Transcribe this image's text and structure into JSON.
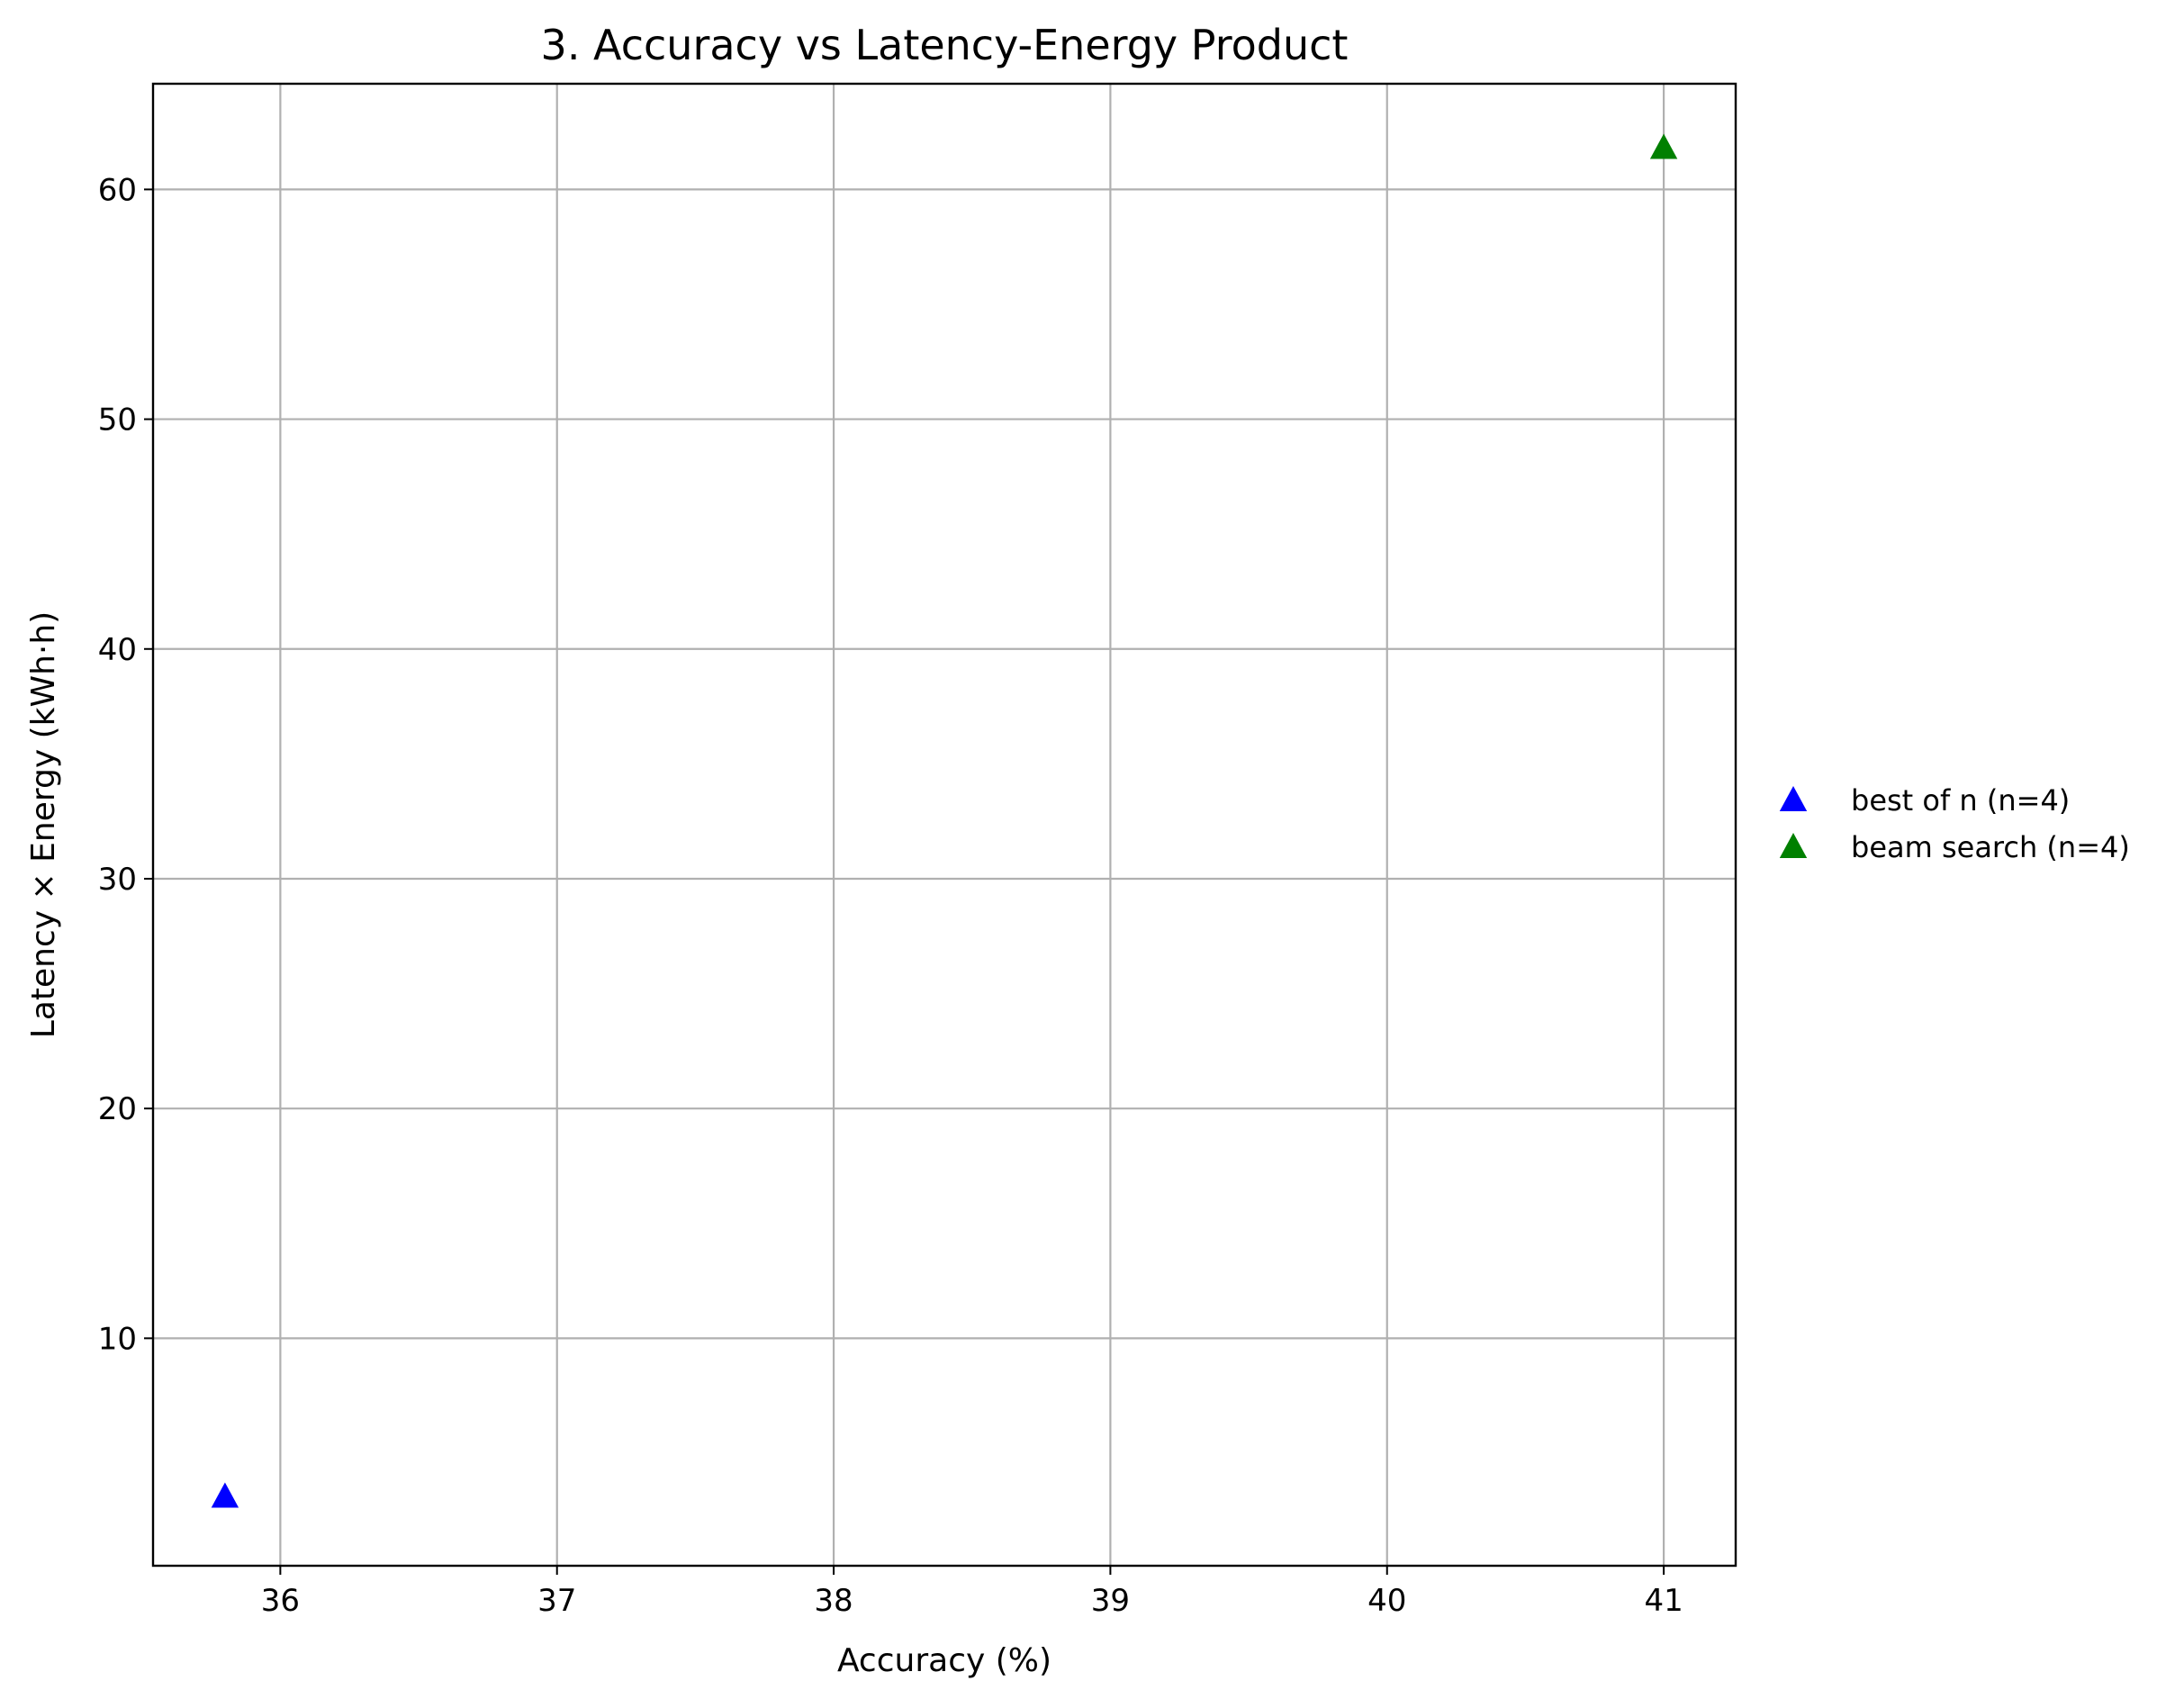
{
  "chart_data": {
    "type": "scatter",
    "title": "3. Accuracy vs Latency-Energy Product",
    "xlabel": "Accuracy (%)",
    "ylabel": "Latency × Energy (kWh·h)",
    "xlim": [
      35.54,
      41.26
    ],
    "ylim": [
      0.1,
      64.6
    ],
    "xticks": [
      36,
      37,
      38,
      39,
      40,
      41
    ],
    "yticks": [
      10,
      20,
      30,
      40,
      50,
      60
    ],
    "grid": true,
    "legend_position": "right-outside",
    "series": [
      {
        "name": "best of n (n=4)",
        "color": "#0000ff",
        "marker": "triangle-up",
        "points": [
          {
            "x": 35.8,
            "y": 3.1
          }
        ]
      },
      {
        "name": "beam search (n=4)",
        "color": "#008000",
        "marker": "triangle-up",
        "points": [
          {
            "x": 41.0,
            "y": 61.8
          }
        ]
      }
    ]
  }
}
